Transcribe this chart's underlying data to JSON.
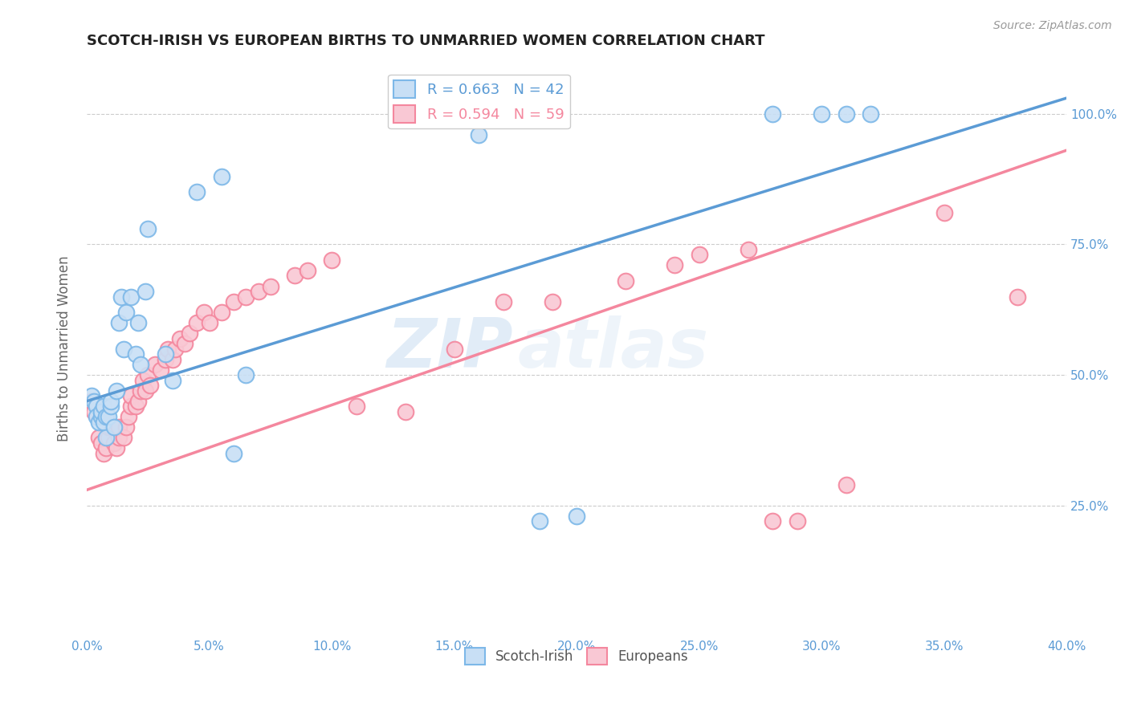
{
  "title": "SCOTCH-IRISH VS EUROPEAN BIRTHS TO UNMARRIED WOMEN CORRELATION CHART",
  "source": "Source: ZipAtlas.com",
  "ylabel": "Births to Unmarried Women",
  "blue_color": "#7db8e8",
  "blue_face": "#c8dff5",
  "pink_color": "#f4879e",
  "pink_face": "#f9c8d4",
  "background_color": "#ffffff",
  "watermark_zip": "ZIP",
  "watermark_atlas": "atlas",
  "xlim": [
    0.0,
    0.4
  ],
  "ylim": [
    0.0,
    1.1
  ],
  "blue_line_color": "#5b9bd5",
  "pink_line_color": "#f4879e",
  "blue_line_x": [
    0.0,
    0.4
  ],
  "blue_line_y": [
    0.45,
    1.03
  ],
  "pink_line_x": [
    0.0,
    0.4
  ],
  "pink_line_y": [
    0.28,
    0.93
  ],
  "legend1_blue_label": "R = 0.663   N = 42",
  "legend1_pink_label": "R = 0.594   N = 59",
  "legend1_blue_color": "#5b9bd5",
  "legend1_pink_color": "#f4879e",
  "legend2_blue_label": "Scotch-Irish",
  "legend2_pink_label": "Europeans",
  "scotch_x": [
    0.002,
    0.003,
    0.004,
    0.004,
    0.005,
    0.006,
    0.006,
    0.007,
    0.007,
    0.008,
    0.008,
    0.009,
    0.01,
    0.01,
    0.011,
    0.012,
    0.013,
    0.014,
    0.015,
    0.016,
    0.018,
    0.02,
    0.021,
    0.022,
    0.024,
    0.025,
    0.032,
    0.035,
    0.045,
    0.055,
    0.06,
    0.065,
    0.14,
    0.155,
    0.16,
    0.17,
    0.185,
    0.2,
    0.28,
    0.3,
    0.31,
    0.32
  ],
  "scotch_y": [
    0.46,
    0.45,
    0.44,
    0.42,
    0.41,
    0.42,
    0.43,
    0.44,
    0.41,
    0.42,
    0.38,
    0.42,
    0.44,
    0.45,
    0.4,
    0.47,
    0.6,
    0.65,
    0.55,
    0.62,
    0.65,
    0.54,
    0.6,
    0.52,
    0.66,
    0.78,
    0.54,
    0.49,
    0.85,
    0.88,
    0.35,
    0.5,
    1.0,
    1.0,
    0.96,
    1.0,
    0.22,
    0.23,
    1.0,
    1.0,
    1.0,
    1.0
  ],
  "euro_x": [
    0.002,
    0.003,
    0.005,
    0.006,
    0.007,
    0.008,
    0.009,
    0.009,
    0.01,
    0.011,
    0.012,
    0.013,
    0.013,
    0.015,
    0.016,
    0.017,
    0.018,
    0.018,
    0.02,
    0.021,
    0.022,
    0.023,
    0.024,
    0.025,
    0.026,
    0.028,
    0.03,
    0.032,
    0.033,
    0.035,
    0.036,
    0.038,
    0.04,
    0.042,
    0.045,
    0.048,
    0.05,
    0.055,
    0.06,
    0.065,
    0.07,
    0.075,
    0.085,
    0.09,
    0.1,
    0.11,
    0.13,
    0.15,
    0.17,
    0.19,
    0.22,
    0.24,
    0.25,
    0.27,
    0.28,
    0.29,
    0.31,
    0.35,
    0.38
  ],
  "euro_y": [
    0.45,
    0.43,
    0.38,
    0.37,
    0.35,
    0.36,
    0.38,
    0.4,
    0.4,
    0.37,
    0.36,
    0.38,
    0.4,
    0.38,
    0.4,
    0.42,
    0.44,
    0.46,
    0.44,
    0.45,
    0.47,
    0.49,
    0.47,
    0.5,
    0.48,
    0.52,
    0.51,
    0.53,
    0.55,
    0.53,
    0.55,
    0.57,
    0.56,
    0.58,
    0.6,
    0.62,
    0.6,
    0.62,
    0.64,
    0.65,
    0.66,
    0.67,
    0.69,
    0.7,
    0.72,
    0.44,
    0.43,
    0.55,
    0.64,
    0.64,
    0.68,
    0.71,
    0.73,
    0.74,
    0.22,
    0.22,
    0.29,
    0.81,
    0.65
  ]
}
